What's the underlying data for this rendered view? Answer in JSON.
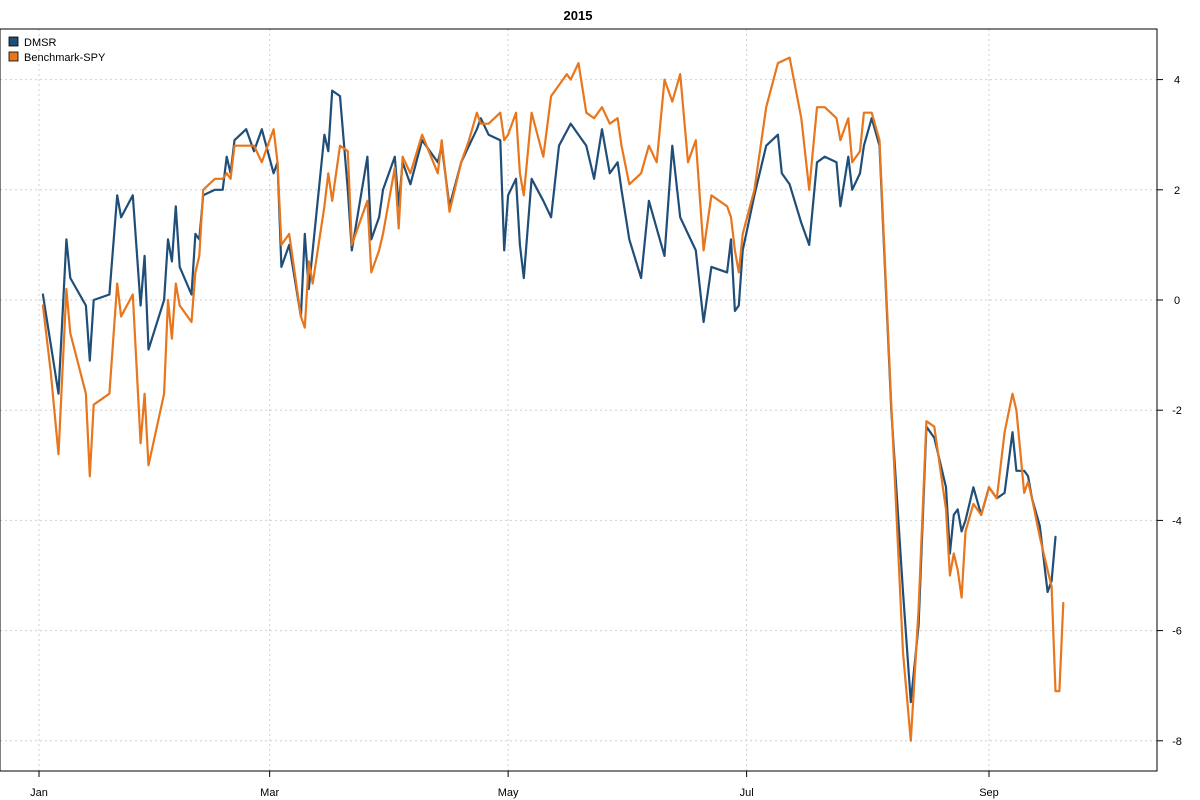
{
  "chart_data": {
    "type": "line",
    "title": "2015",
    "xlabel": "",
    "ylabel": "",
    "x_ticks": [
      "Jan",
      "Mar",
      "May",
      "Jul",
      "Sep"
    ],
    "x_tick_days": [
      0,
      59,
      120,
      181,
      243
    ],
    "x_range_days": [
      0,
      270
    ],
    "ylim": [
      -8.5,
      4.9
    ],
    "y_ticks": [
      4,
      2,
      0,
      -2,
      -4,
      -6,
      -8
    ],
    "grid": true,
    "legend_position": "top-left",
    "series": [
      {
        "name": "DMSR",
        "color": "#1f4e79",
        "points": [
          [
            1,
            0.1
          ],
          [
            3,
            -0.8
          ],
          [
            5,
            -1.7
          ],
          [
            7,
            1.1
          ],
          [
            8,
            0.4
          ],
          [
            12,
            -0.1
          ],
          [
            13,
            -1.1
          ],
          [
            14,
            0
          ],
          [
            18,
            0.1
          ],
          [
            20,
            1.9
          ],
          [
            21,
            1.5
          ],
          [
            24,
            1.9
          ],
          [
            26,
            -0.1
          ],
          [
            27,
            0.8
          ],
          [
            28,
            -0.9
          ],
          [
            32,
            0
          ],
          [
            33,
            1.1
          ],
          [
            34,
            0.7
          ],
          [
            35,
            1.7
          ],
          [
            36,
            0.6
          ],
          [
            39,
            0.1
          ],
          [
            40,
            1.2
          ],
          [
            41,
            1.1
          ],
          [
            42,
            1.9
          ],
          [
            45,
            2
          ],
          [
            47,
            2
          ],
          [
            48,
            2.6
          ],
          [
            49,
            2.3
          ],
          [
            50,
            2.9
          ],
          [
            53,
            3.1
          ],
          [
            55,
            2.7
          ],
          [
            57,
            3.1
          ],
          [
            60,
            2.3
          ],
          [
            61,
            2.5
          ],
          [
            62,
            0.6
          ],
          [
            64,
            1
          ],
          [
            67,
            -0.3
          ],
          [
            68,
            1.2
          ],
          [
            69,
            0.2
          ],
          [
            70,
            0.9
          ],
          [
            73,
            3
          ],
          [
            74,
            2.7
          ],
          [
            75,
            3.8
          ],
          [
            77,
            3.7
          ],
          [
            79,
            2
          ],
          [
            80,
            0.9
          ],
          [
            84,
            2.6
          ],
          [
            85,
            1.1
          ],
          [
            87,
            1.5
          ],
          [
            88,
            2
          ],
          [
            91,
            2.6
          ],
          [
            92,
            1.7
          ],
          [
            93,
            2.5
          ],
          [
            95,
            2.1
          ],
          [
            98,
            2.9
          ],
          [
            102,
            2.5
          ],
          [
            103,
            2.8
          ],
          [
            105,
            1.7
          ],
          [
            108,
            2.5
          ],
          [
            110,
            2.8
          ],
          [
            112,
            3.1
          ],
          [
            113,
            3.3
          ],
          [
            115,
            3
          ],
          [
            118,
            2.9
          ],
          [
            119,
            0.9
          ],
          [
            120,
            1.9
          ],
          [
            122,
            2.2
          ],
          [
            123,
            1
          ],
          [
            124,
            0.4
          ],
          [
            126,
            2.2
          ],
          [
            129,
            1.8
          ],
          [
            131,
            1.5
          ],
          [
            133,
            2.8
          ],
          [
            136,
            3.2
          ],
          [
            138,
            3
          ],
          [
            140,
            2.8
          ],
          [
            142,
            2.2
          ],
          [
            144,
            3.1
          ],
          [
            146,
            2.3
          ],
          [
            148,
            2.5
          ],
          [
            149,
            2
          ],
          [
            151,
            1.1
          ],
          [
            154,
            0.4
          ],
          [
            156,
            1.8
          ],
          [
            158,
            1.3
          ],
          [
            160,
            0.8
          ],
          [
            162,
            2.8
          ],
          [
            164,
            1.5
          ],
          [
            166,
            1.2
          ],
          [
            168,
            0.9
          ],
          [
            170,
            -0.4
          ],
          [
            172,
            0.6
          ],
          [
            176,
            0.5
          ],
          [
            177,
            1.1
          ],
          [
            178,
            -0.2
          ],
          [
            179,
            -0.1
          ],
          [
            180,
            0.9
          ],
          [
            183,
            1.9
          ],
          [
            186,
            2.8
          ],
          [
            189,
            3
          ],
          [
            190,
            2.3
          ],
          [
            192,
            2.1
          ],
          [
            195,
            1.4
          ],
          [
            197,
            1
          ],
          [
            199,
            2.5
          ],
          [
            201,
            2.6
          ],
          [
            204,
            2.5
          ],
          [
            205,
            1.7
          ],
          [
            207,
            2.6
          ],
          [
            208,
            2
          ],
          [
            210,
            2.3
          ],
          [
            211,
            2.8
          ],
          [
            213,
            3.3
          ],
          [
            215,
            2.8
          ],
          [
            218,
            -2
          ],
          [
            221,
            -5.3
          ],
          [
            223,
            -7.3
          ],
          [
            225,
            -5.9
          ],
          [
            227,
            -2.3
          ],
          [
            229,
            -2.5
          ],
          [
            232,
            -3.4
          ],
          [
            233,
            -4.6
          ],
          [
            234,
            -3.9
          ],
          [
            235,
            -3.8
          ],
          [
            236,
            -4.2
          ],
          [
            237,
            -4
          ],
          [
            239,
            -3.4
          ],
          [
            241,
            -3.9
          ],
          [
            243,
            -3.4
          ],
          [
            245,
            -3.6
          ],
          [
            247,
            -3.5
          ],
          [
            249,
            -2.4
          ],
          [
            250,
            -3.1
          ],
          [
            252,
            -3.1
          ],
          [
            253,
            -3.2
          ],
          [
            254,
            -3.6
          ],
          [
            256,
            -4.1
          ],
          [
            258,
            -5.3
          ],
          [
            259,
            -5.1
          ],
          [
            260,
            -4.3
          ]
        ]
      },
      {
        "name": "Benchmark-SPY",
        "color": "#e8761d",
        "points": [
          [
            1,
            -0.1
          ],
          [
            3,
            -1.3
          ],
          [
            5,
            -2.8
          ],
          [
            7,
            0.2
          ],
          [
            8,
            -0.6
          ],
          [
            12,
            -1.7
          ],
          [
            13,
            -3.2
          ],
          [
            14,
            -1.9
          ],
          [
            18,
            -1.7
          ],
          [
            20,
            0.3
          ],
          [
            21,
            -0.3
          ],
          [
            24,
            0.1
          ],
          [
            26,
            -2.6
          ],
          [
            27,
            -1.7
          ],
          [
            28,
            -3
          ],
          [
            32,
            -1.7
          ],
          [
            33,
            0
          ],
          [
            34,
            -0.7
          ],
          [
            35,
            0.3
          ],
          [
            36,
            -0.1
          ],
          [
            39,
            -0.4
          ],
          [
            40,
            0.5
          ],
          [
            41,
            0.8
          ],
          [
            42,
            2
          ],
          [
            45,
            2.2
          ],
          [
            47,
            2.2
          ],
          [
            48,
            2.3
          ],
          [
            49,
            2.2
          ],
          [
            50,
            2.8
          ],
          [
            53,
            2.8
          ],
          [
            55,
            2.8
          ],
          [
            57,
            2.5
          ],
          [
            58,
            2.7
          ],
          [
            60,
            3.1
          ],
          [
            61,
            2.5
          ],
          [
            62,
            1
          ],
          [
            64,
            1.2
          ],
          [
            67,
            -0.3
          ],
          [
            68,
            -0.5
          ],
          [
            69,
            0.7
          ],
          [
            70,
            0.3
          ],
          [
            73,
            1.7
          ],
          [
            74,
            2.3
          ],
          [
            75,
            1.8
          ],
          [
            77,
            2.8
          ],
          [
            79,
            2.7
          ],
          [
            80,
            1
          ],
          [
            84,
            1.8
          ],
          [
            85,
            0.5
          ],
          [
            87,
            0.9
          ],
          [
            88,
            1.2
          ],
          [
            91,
            2.4
          ],
          [
            92,
            1.3
          ],
          [
            93,
            2.6
          ],
          [
            95,
            2.3
          ],
          [
            98,
            3
          ],
          [
            102,
            2.3
          ],
          [
            103,
            2.9
          ],
          [
            105,
            1.6
          ],
          [
            108,
            2.5
          ],
          [
            110,
            2.9
          ],
          [
            112,
            3.4
          ],
          [
            113,
            3.2
          ],
          [
            115,
            3.2
          ],
          [
            118,
            3.4
          ],
          [
            119,
            2.9
          ],
          [
            120,
            3
          ],
          [
            122,
            3.4
          ],
          [
            123,
            2.3
          ],
          [
            124,
            1.9
          ],
          [
            126,
            3.4
          ],
          [
            129,
            2.6
          ],
          [
            131,
            3.7
          ],
          [
            133,
            3.9
          ],
          [
            135,
            4.1
          ],
          [
            136,
            4
          ],
          [
            138,
            4.3
          ],
          [
            140,
            3.4
          ],
          [
            142,
            3.3
          ],
          [
            144,
            3.5
          ],
          [
            146,
            3.2
          ],
          [
            148,
            3.3
          ],
          [
            149,
            2.8
          ],
          [
            151,
            2.1
          ],
          [
            154,
            2.3
          ],
          [
            156,
            2.8
          ],
          [
            158,
            2.5
          ],
          [
            160,
            4
          ],
          [
            162,
            3.6
          ],
          [
            164,
            4.1
          ],
          [
            166,
            2.5
          ],
          [
            168,
            2.9
          ],
          [
            170,
            0.9
          ],
          [
            172,
            1.9
          ],
          [
            176,
            1.7
          ],
          [
            177,
            1.5
          ],
          [
            178,
            0.9
          ],
          [
            179,
            0.5
          ],
          [
            180,
            1.2
          ],
          [
            183,
            2
          ],
          [
            186,
            3.5
          ],
          [
            189,
            4.3
          ],
          [
            192,
            4.4
          ],
          [
            195,
            3.3
          ],
          [
            197,
            2
          ],
          [
            199,
            3.5
          ],
          [
            201,
            3.5
          ],
          [
            204,
            3.3
          ],
          [
            205,
            2.9
          ],
          [
            207,
            3.3
          ],
          [
            208,
            2.5
          ],
          [
            210,
            2.7
          ],
          [
            211,
            3.4
          ],
          [
            213,
            3.4
          ],
          [
            215,
            2.9
          ],
          [
            218,
            -1.9
          ],
          [
            221,
            -6.4
          ],
          [
            223,
            -8
          ],
          [
            225,
            -5.6
          ],
          [
            227,
            -2.2
          ],
          [
            229,
            -2.3
          ],
          [
            232,
            -3.8
          ],
          [
            233,
            -5
          ],
          [
            234,
            -4.6
          ],
          [
            235,
            -4.9
          ],
          [
            236,
            -5.4
          ],
          [
            237,
            -4.2
          ],
          [
            239,
            -3.7
          ],
          [
            241,
            -3.9
          ],
          [
            243,
            -3.4
          ],
          [
            245,
            -3.6
          ],
          [
            247,
            -2.4
          ],
          [
            249,
            -1.7
          ],
          [
            250,
            -2
          ],
          [
            252,
            -3.5
          ],
          [
            253,
            -3.3
          ],
          [
            254,
            -3.6
          ],
          [
            256,
            -4.3
          ],
          [
            258,
            -4.9
          ],
          [
            259,
            -5.2
          ],
          [
            260,
            -7.1
          ],
          [
            261,
            -7.1
          ],
          [
            262,
            -5.5
          ]
        ]
      }
    ]
  }
}
